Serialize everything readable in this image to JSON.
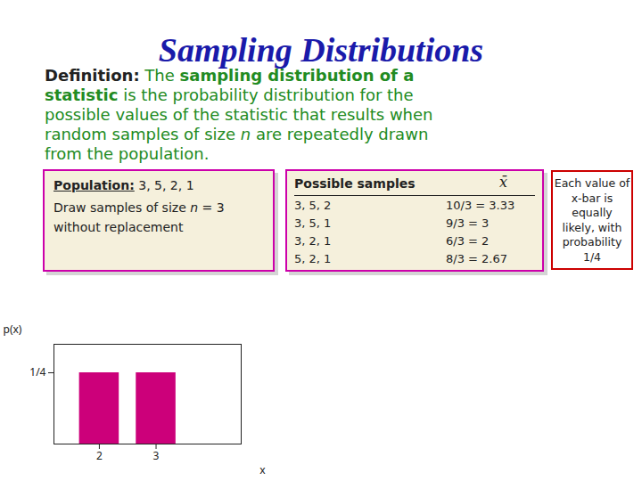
{
  "chart_data": {
    "type": "bar",
    "title": "Sampling Distributions",
    "x": [
      2,
      3
    ],
    "values": [
      0.25,
      0.25
    ],
    "color": "#cc007a",
    "xlim": [
      1.2,
      4.5
    ],
    "xticks": [
      2,
      3
    ],
    "ylim": [
      0,
      0.35
    ],
    "yticks": [
      {
        "value": 0.25,
        "label": "1/4"
      }
    ],
    "x_label": "x",
    "y_label": "p(x)",
    "annotations": [
      [
        [
          "Definition:",
          " The ",
          "sampling distribution of a"
        ],
        [
          "statistic",
          " is the probability distribution for the"
        ],
        [
          "possible values of the statistic that results when"
        ],
        [
          "random samples of size ",
          "n",
          " are repeatedly drawn"
        ],
        [
          "from the population."
        ]
      ],
      [
        [
          "Population:",
          " 3, 5, 2, 1"
        ],
        [
          "Draw samples of size ",
          "n",
          " = 3"
        ],
        [
          "without replacement"
        ]
      ],
      [
        [
          "Possible samples",
          "x̄"
        ],
        [
          "3, 5, 2",
          "10/3 = 3.33"
        ],
        [
          "3, 5, 1",
          "9/3 = 3"
        ],
        [
          "3, 2, 1",
          "6/3 = 2"
        ],
        [
          "5, 2, 1",
          "8/3 = 2.67"
        ]
      ],
      [
        [
          "Each value of"
        ],
        [
          "x-bar is"
        ],
        [
          "equally"
        ],
        [
          "likely, with"
        ],
        [
          "probability"
        ],
        [
          "1/4"
        ]
      ]
    ]
  }
}
